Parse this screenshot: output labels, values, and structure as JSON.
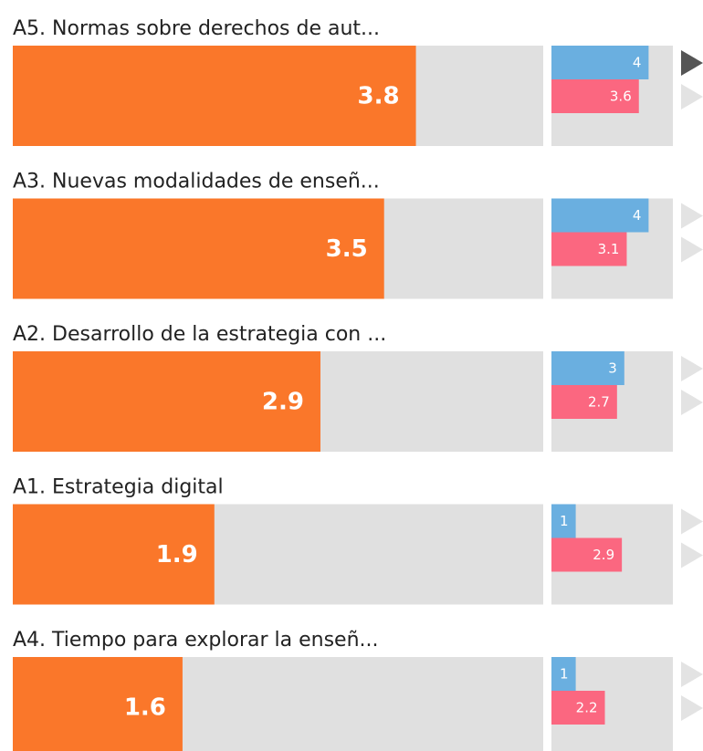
{
  "chart_data": {
    "type": "bar",
    "categories": [
      "A5. Normas sobre derechos de aut...",
      "A3. Nuevas modalidades de enseñ...",
      "A2. Desarrollo de la estrategia con ...",
      "A1. Estrategia digital",
      "A4. Tiempo para explorar la enseñ..."
    ],
    "xlim": [
      0,
      5
    ],
    "series": [
      {
        "color": "#fa772a",
        "values": [
          3.8,
          3.5,
          2.9,
          1.9,
          1.6
        ]
      },
      {
        "color": "#6aafe0",
        "values": [
          4,
          4,
          3,
          1,
          1
        ]
      },
      {
        "color": "#fb6780",
        "values": [
          3.6,
          3.1,
          2.7,
          2.9,
          2.2
        ]
      }
    ]
  }
}
